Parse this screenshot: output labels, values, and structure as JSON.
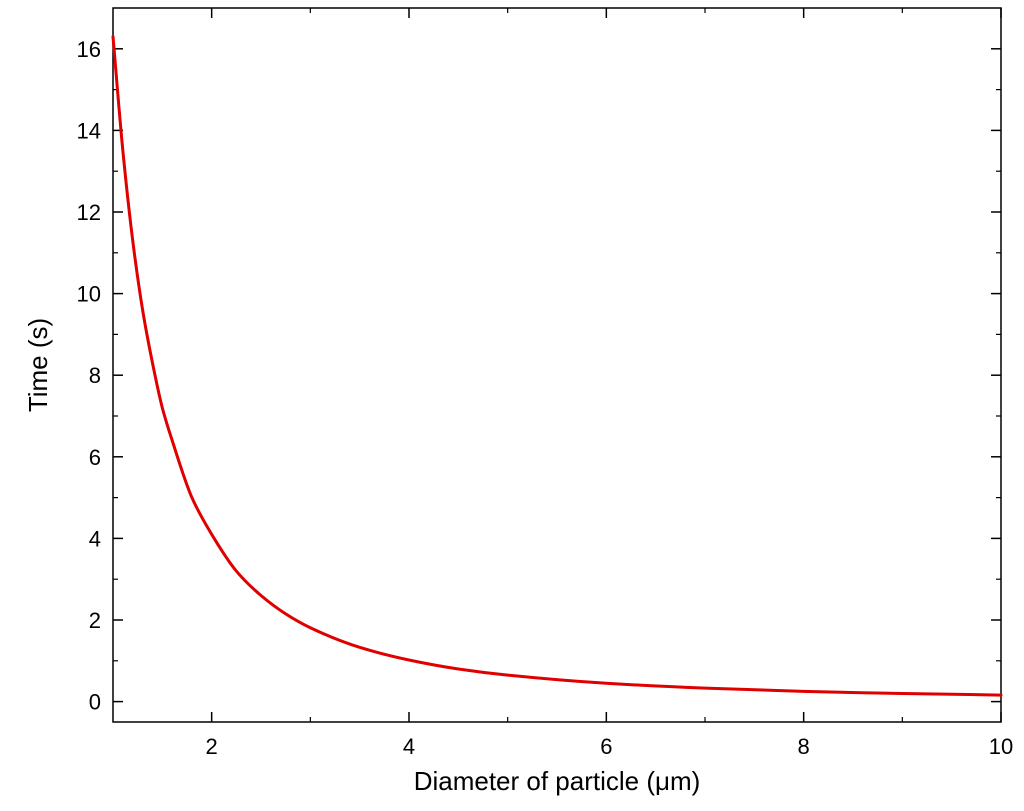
{
  "chart_data": {
    "type": "line",
    "title": "",
    "xlabel": "Diameter of particle (μm)",
    "ylabel": "Time (s)",
    "xlim": [
      1,
      10
    ],
    "ylim": [
      -0.5,
      17
    ],
    "xticks": [
      2,
      4,
      6,
      8,
      10
    ],
    "yticks": [
      0,
      2,
      4,
      6,
      8,
      10,
      12,
      14,
      16
    ],
    "grid": false,
    "legend": "none",
    "series": [
      {
        "color": "#e00000",
        "x": [
          1.0,
          1.1,
          1.2,
          1.3,
          1.4,
          1.5,
          1.6,
          1.8,
          2.0,
          2.25,
          2.5,
          2.75,
          3.0,
          3.5,
          4.0,
          4.5,
          5.0,
          6.0,
          7.0,
          8.0,
          9.0,
          10.0
        ],
        "y": [
          16.3,
          13.5,
          11.3,
          9.6,
          8.3,
          7.2,
          6.4,
          5.0,
          4.1,
          3.2,
          2.6,
          2.15,
          1.81,
          1.33,
          1.02,
          0.8,
          0.65,
          0.45,
          0.33,
          0.25,
          0.2,
          0.16
        ]
      }
    ]
  }
}
